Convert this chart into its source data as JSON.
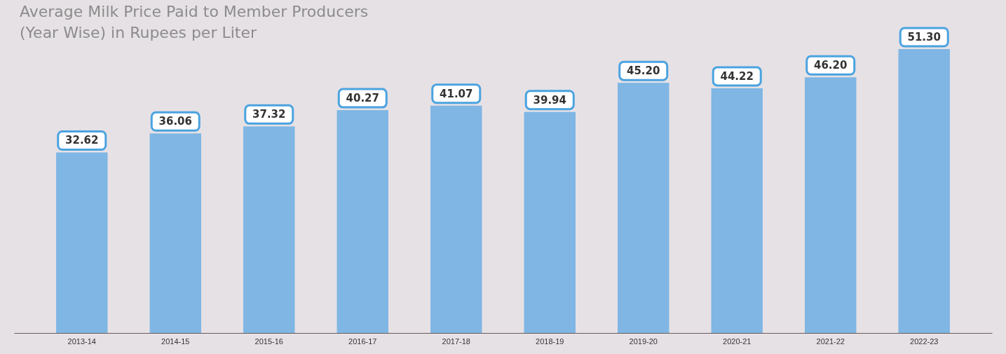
{
  "chart_data": {
    "type": "bar",
    "title": "Average Milk Price Paid to Member Producers (Year Wise) in Rupees per Liter",
    "categories": [
      "2013-14",
      "2014-15",
      "2015-16",
      "2016-17",
      "2017-18",
      "2018-19",
      "2019-20",
      "2020-21",
      "2021-22",
      "2022-23"
    ],
    "values": [
      32.62,
      36.06,
      37.32,
      40.27,
      41.07,
      39.94,
      45.2,
      44.22,
      46.2,
      51.3
    ],
    "value_labels": [
      "32.62",
      "36.06",
      "37.32",
      "40.27",
      "41.07",
      "39.94",
      "45.20",
      "44.22",
      "46.20",
      "51.30"
    ],
    "color": "#7fb6e4"
  }
}
